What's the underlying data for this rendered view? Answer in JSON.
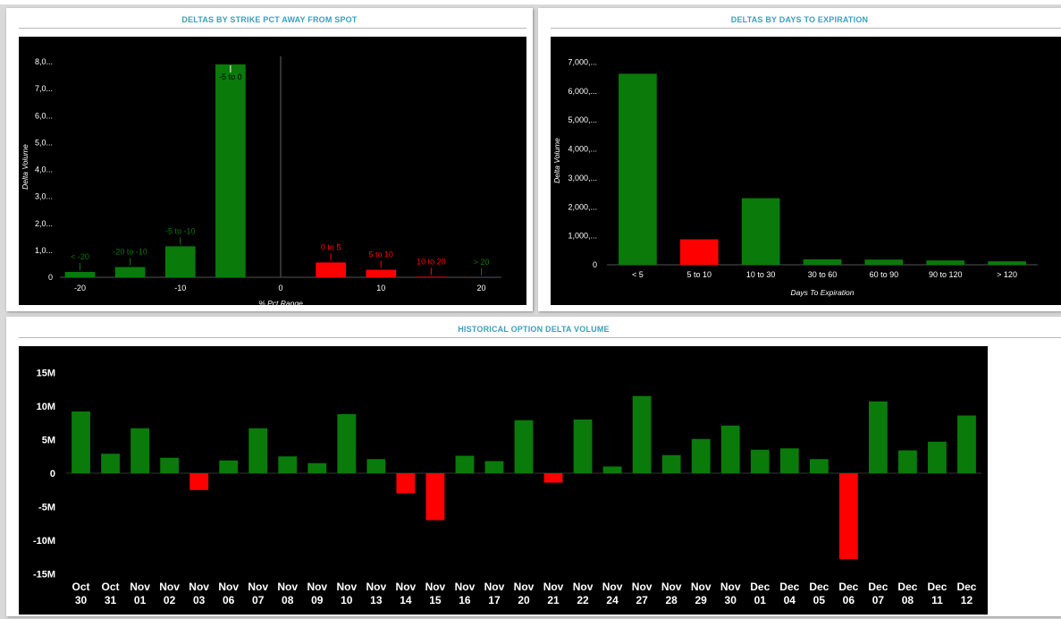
{
  "colors": {
    "positive": "#0a7a0a",
    "negative": "#ff0000",
    "title": "#3a9fbf",
    "chart_bg": "#000000",
    "text": "#ffffff"
  },
  "panels": {
    "strike": {
      "title": "DELTAS BY STRIKE PCT AWAY FROM SPOT"
    },
    "expiry": {
      "title": "DELTAS BY DAYS TO EXPIRATION"
    },
    "history": {
      "title": "HISTORICAL OPTION DELTA VOLUME"
    }
  },
  "chart_data": [
    {
      "id": "strike",
      "type": "bar",
      "xlabel": "% Pct Range",
      "ylabel": "Delta Volume",
      "xlim": [
        -22,
        22
      ],
      "ylim": [
        0,
        8200
      ],
      "yticks": [
        {
          "value": 0,
          "label": "0"
        },
        {
          "value": 1000,
          "label": "1,0..."
        },
        {
          "value": 2000,
          "label": "2,0..."
        },
        {
          "value": 3000,
          "label": "3,0..."
        },
        {
          "value": 4000,
          "label": "4,0..."
        },
        {
          "value": 5000,
          "label": "5,0..."
        },
        {
          "value": 6000,
          "label": "6,0..."
        },
        {
          "value": 7000,
          "label": "7,0..."
        },
        {
          "value": 8000,
          "label": "8,0..."
        }
      ],
      "xticks": [
        {
          "value": -20,
          "label": "-20"
        },
        {
          "value": -10,
          "label": "-10"
        },
        {
          "value": 0,
          "label": "0"
        },
        {
          "value": 10,
          "label": "10"
        },
        {
          "value": 20,
          "label": "20"
        }
      ],
      "bars": [
        {
          "label": "< -20",
          "center": -20,
          "width": 3,
          "value": 200,
          "color": "positive"
        },
        {
          "label": "-20 to -10",
          "center": -15,
          "width": 3,
          "value": 380,
          "color": "positive"
        },
        {
          "label": "-5 to -10",
          "center": -10,
          "width": 3,
          "value": 1150,
          "color": "positive"
        },
        {
          "label": "-5 to 0",
          "center": -5,
          "width": 3,
          "value": 7900,
          "color": "positive"
        },
        {
          "label": "0 to 5",
          "center": 5,
          "width": 3,
          "value": 550,
          "color": "negative"
        },
        {
          "label": "5 to 10",
          "center": 10,
          "width": 3,
          "value": 280,
          "color": "negative"
        },
        {
          "label": "10 to 20",
          "center": 15,
          "width": 3,
          "value": 20,
          "color": "negative"
        },
        {
          "label": "> 20",
          "center": 20,
          "width": 3,
          "value": 0,
          "color": "positive"
        }
      ],
      "legend": "none",
      "grid": false
    },
    {
      "id": "expiry",
      "type": "bar",
      "xlabel": "Days To Expiration",
      "ylabel": "Delta Volume",
      "ylim": [
        0,
        7200
      ],
      "yticks": [
        {
          "value": 0,
          "label": "0"
        },
        {
          "value": 1000,
          "label": "1,000,..."
        },
        {
          "value": 2000,
          "label": "2,000,..."
        },
        {
          "value": 3000,
          "label": "3,000,..."
        },
        {
          "value": 4000,
          "label": "4,000,..."
        },
        {
          "value": 5000,
          "label": "5,000,..."
        },
        {
          "value": 6000,
          "label": "6,000,..."
        },
        {
          "value": 7000,
          "label": "7,000,..."
        }
      ],
      "categories": [
        "< 5",
        "5 to 10",
        "10 to 30",
        "30 to 60",
        "60 to 90",
        "90 to 120",
        "> 120"
      ],
      "values": [
        6600,
        880,
        2300,
        190,
        180,
        150,
        120
      ],
      "bar_colors": [
        "positive",
        "negative",
        "positive",
        "positive",
        "positive",
        "positive",
        "positive"
      ],
      "legend": "none",
      "grid": false
    },
    {
      "id": "history",
      "type": "bar",
      "ylim": [
        -16,
        16
      ],
      "yticks": [
        {
          "value": 15,
          "label": "15M"
        },
        {
          "value": 10,
          "label": "10M"
        },
        {
          "value": 5,
          "label": "5M"
        },
        {
          "value": 0,
          "label": "0"
        },
        {
          "value": -5,
          "label": "-5M"
        },
        {
          "value": -10,
          "label": "-10M"
        },
        {
          "value": -15,
          "label": "-15M"
        }
      ],
      "categories": [
        [
          "Oct",
          "30"
        ],
        [
          "Oct",
          "31"
        ],
        [
          "Nov",
          "01"
        ],
        [
          "Nov",
          "02"
        ],
        [
          "Nov",
          "03"
        ],
        [
          "Nov",
          "06"
        ],
        [
          "Nov",
          "07"
        ],
        [
          "Nov",
          "08"
        ],
        [
          "Nov",
          "09"
        ],
        [
          "Nov",
          "10"
        ],
        [
          "Nov",
          "13"
        ],
        [
          "Nov",
          "14"
        ],
        [
          "Nov",
          "15"
        ],
        [
          "Nov",
          "16"
        ],
        [
          "Nov",
          "17"
        ],
        [
          "Nov",
          "20"
        ],
        [
          "Nov",
          "21"
        ],
        [
          "Nov",
          "22"
        ],
        [
          "Nov",
          "24"
        ],
        [
          "Nov",
          "27"
        ],
        [
          "Nov",
          "28"
        ],
        [
          "Nov",
          "29"
        ],
        [
          "Nov",
          "30"
        ],
        [
          "Dec",
          "01"
        ],
        [
          "Dec",
          "04"
        ],
        [
          "Dec",
          "05"
        ],
        [
          "Dec",
          "06"
        ],
        [
          "Dec",
          "07"
        ],
        [
          "Dec",
          "08"
        ],
        [
          "Dec",
          "11"
        ],
        [
          "Dec",
          "12"
        ]
      ],
      "values": [
        9.2,
        2.9,
        6.7,
        2.3,
        -2.5,
        1.9,
        6.7,
        2.5,
        1.5,
        8.8,
        2.1,
        -3.0,
        -7.0,
        2.6,
        1.8,
        7.9,
        -1.4,
        8.0,
        1.0,
        11.5,
        2.7,
        5.1,
        7.1,
        3.5,
        3.7,
        2.1,
        -12.8,
        10.7,
        3.4,
        4.7,
        8.6
      ],
      "unit": "M",
      "legend": "none",
      "grid": false
    }
  ]
}
